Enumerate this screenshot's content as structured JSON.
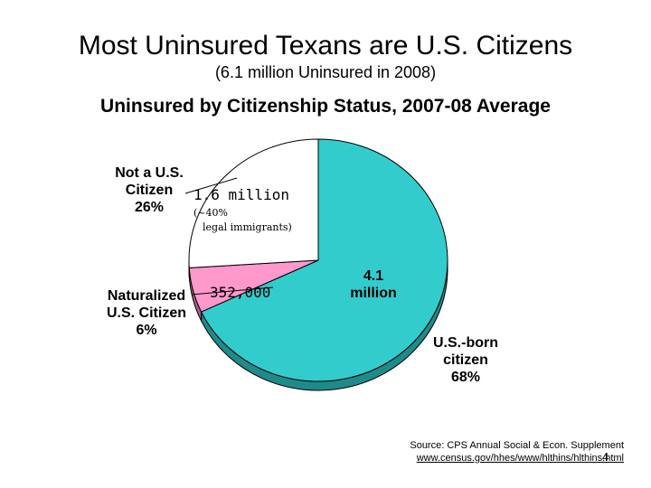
{
  "slide": {
    "title": "Most Uninsured Texans are U.S. Citizens",
    "subtitle": "(6.1 million Uninsured in 2008)",
    "page_number": "4"
  },
  "labels": {
    "not_citizen": [
      "Not a U.S.",
      "Citizen",
      "26%"
    ],
    "not_citizen_value": "1.6 million",
    "not_citizen_note_1": "(~40%",
    "not_citizen_note_2": "legal immigrants)",
    "naturalized": [
      "Naturalized",
      "U.S. Citizen",
      "6%"
    ],
    "naturalized_value": "352,000",
    "us_born": [
      "U.S.-born",
      "citizen",
      "68%"
    ],
    "us_born_value": [
      "4.1",
      "million"
    ]
  },
  "source": {
    "text": "Source: CPS Annual Social & Econ. Supplement",
    "url": "www.census.gov/hhes/www/hlthins/hlthins.html"
  },
  "colors": {
    "us_born": "#33CCCC",
    "naturalized": "#FF99CC",
    "not_citizen": "#FFFFFF",
    "outline": "#000000",
    "shadow_us_born": "#1F8A8A",
    "shadow_naturalized": "#B06088"
  },
  "chart_data": {
    "type": "pie",
    "title": "Uninsured by Citizenship Status, 2007-08 Average",
    "categories": [
      "U.S.-born citizen",
      "Naturalized U.S. Citizen",
      "Not a U.S. Citizen"
    ],
    "values": [
      68,
      6,
      26
    ],
    "unit": "%",
    "start_angle_deg": 0,
    "direction": "clockwise"
  }
}
